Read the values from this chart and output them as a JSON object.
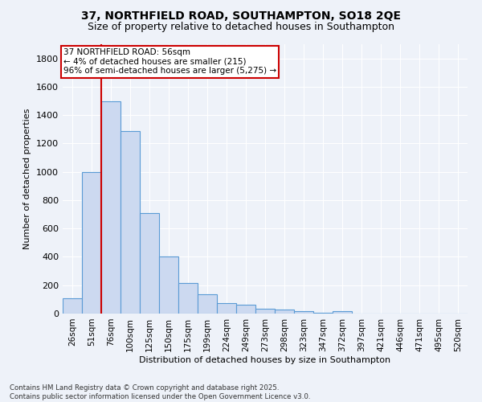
{
  "title_line1": "37, NORTHFIELD ROAD, SOUTHAMPTON, SO18 2QE",
  "title_line2": "Size of property relative to detached houses in Southampton",
  "xlabel": "Distribution of detached houses by size in Southampton",
  "ylabel": "Number of detached properties",
  "categories": [
    "26sqm",
    "51sqm",
    "76sqm",
    "100sqm",
    "125sqm",
    "150sqm",
    "175sqm",
    "199sqm",
    "224sqm",
    "249sqm",
    "273sqm",
    "298sqm",
    "323sqm",
    "347sqm",
    "372sqm",
    "397sqm",
    "421sqm",
    "446sqm",
    "471sqm",
    "495sqm",
    "520sqm"
  ],
  "values": [
    110,
    1000,
    1500,
    1290,
    710,
    400,
    215,
    135,
    75,
    60,
    35,
    30,
    15,
    5,
    18,
    0,
    0,
    0,
    0,
    0,
    0
  ],
  "bar_color": "#ccd9f0",
  "bar_edge_color": "#5b9bd5",
  "property_line_color": "#cc0000",
  "annotation_text": "37 NORTHFIELD ROAD: 56sqm\n← 4% of detached houses are smaller (215)\n96% of semi-detached houses are larger (5,275) →",
  "annotation_box_color": "#ffffff",
  "annotation_box_edge_color": "#cc0000",
  "ylim": [
    0,
    1900
  ],
  "yticks": [
    0,
    200,
    400,
    600,
    800,
    1000,
    1200,
    1400,
    1600,
    1800
  ],
  "background_color": "#eef2f9",
  "grid_color": "#ffffff",
  "footnote": "Contains HM Land Registry data © Crown copyright and database right 2025.\nContains public sector information licensed under the Open Government Licence v3.0."
}
